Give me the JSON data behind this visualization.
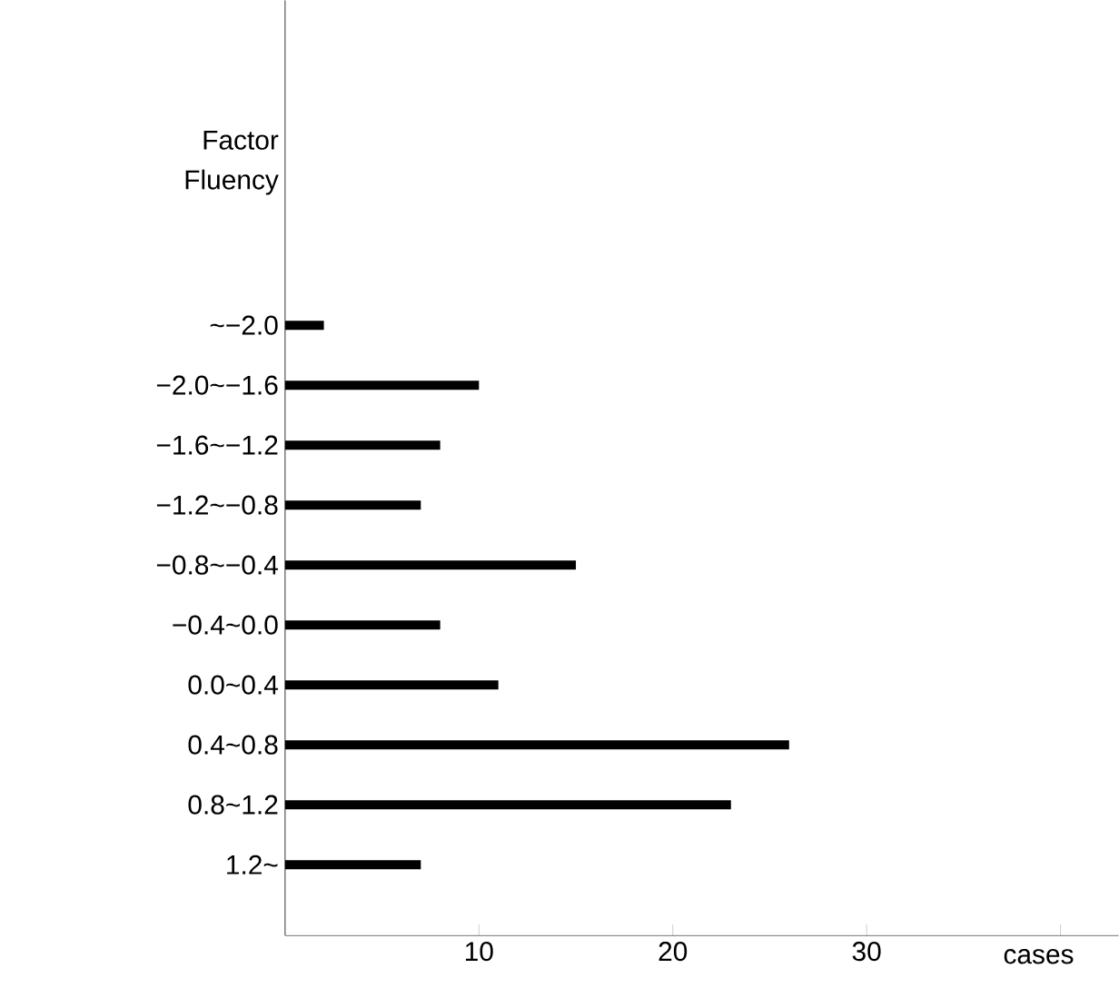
{
  "chart_data": {
    "type": "bar",
    "orientation": "horizontal",
    "title": "Factor Fluency",
    "xlabel": "cases",
    "categories": [
      "~−2.0",
      "−2.0~−1.6",
      "−1.6~−1.2",
      "−1.2~−0.8",
      "−0.8~−0.4",
      "−0.4~0.0",
      "0.0~0.4",
      "0.4~0.8",
      "0.8~1.2",
      "1.2~"
    ],
    "values": [
      2,
      10,
      8,
      7,
      15,
      8,
      11,
      26,
      23,
      7
    ],
    "color": "#000000",
    "xlim": [
      0,
      43
    ],
    "xticks": [
      {
        "value": 10,
        "label": "10"
      },
      {
        "value": 20,
        "label": "20"
      },
      {
        "value": 30,
        "label": "30"
      },
      {
        "value": 40,
        "label": null
      }
    ]
  }
}
